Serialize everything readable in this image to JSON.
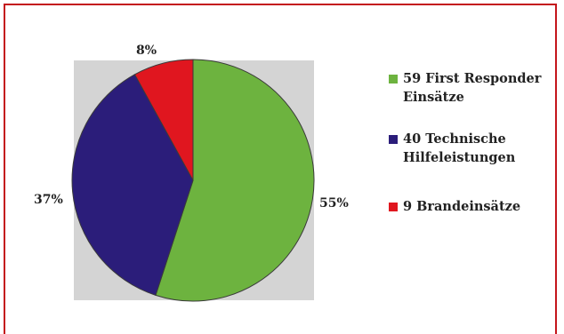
{
  "chart_data": {
    "type": "pie",
    "slices": [
      {
        "label": "59 First Responder Einsätze",
        "value": 55,
        "value_label": "55%",
        "color": "#6db33f"
      },
      {
        "label": "40 Technische Hilfeleistungen",
        "value": 37,
        "value_label": "37%",
        "color": "#2b1d7a"
      },
      {
        "label": "9 Brandeinsätze",
        "value": 8,
        "value_label": "8%",
        "color": "#e0161f"
      }
    ],
    "legend_position": "right",
    "legend": [
      "59 First Responder Einsätze",
      "40 Technische Hilfeleistungen",
      "9 Brandeinsätze"
    ]
  },
  "colors": {
    "frame_border": "#c4161c",
    "plot_background": "#d4d4d4",
    "slice_outline": "#3a3a3a"
  }
}
